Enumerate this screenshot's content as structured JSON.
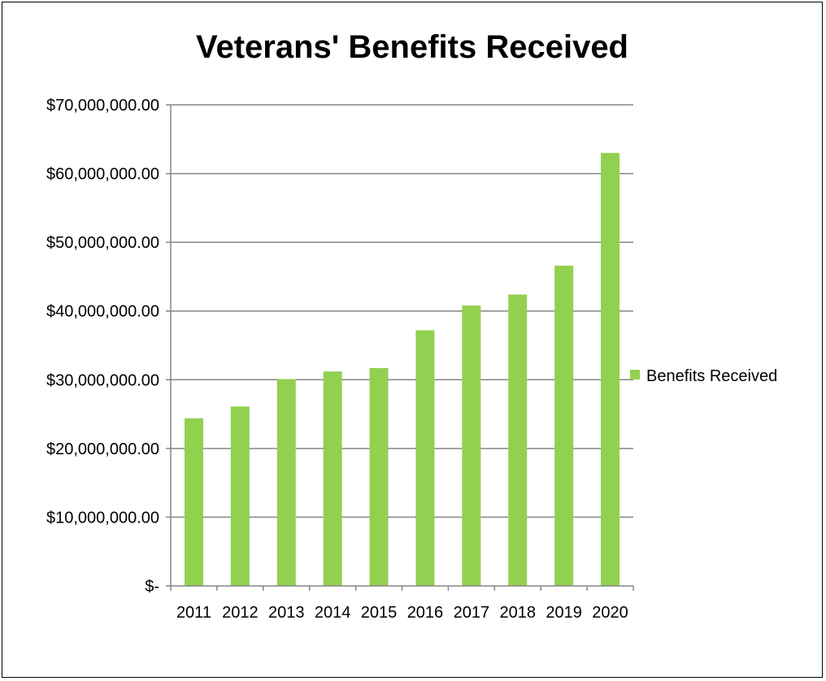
{
  "chart_data": {
    "type": "bar",
    "title": "Veterans' Benefits Received",
    "xlabel": "",
    "ylabel": "",
    "categories": [
      "2011",
      "2012",
      "2013",
      "2014",
      "2015",
      "2016",
      "2017",
      "2018",
      "2019",
      "2020"
    ],
    "series": [
      {
        "name": "Benefits Received",
        "color": "#92d050",
        "values": [
          24400000,
          26100000,
          30100000,
          31200000,
          31700000,
          37200000,
          40800000,
          42400000,
          46600000,
          63000000
        ]
      }
    ],
    "ylim": [
      0,
      70000000
    ],
    "y_ticks": [
      0,
      10000000,
      20000000,
      30000000,
      40000000,
      50000000,
      60000000,
      70000000
    ],
    "y_tick_labels": [
      "$-",
      "$10,000,000.00",
      "$20,000,000.00",
      "$30,000,000.00",
      "$40,000,000.00",
      "$50,000,000.00",
      "$60,000,000.00",
      "$70,000,000.00"
    ],
    "grid": true,
    "gridline_color": "#868686",
    "legend_position": "right"
  }
}
